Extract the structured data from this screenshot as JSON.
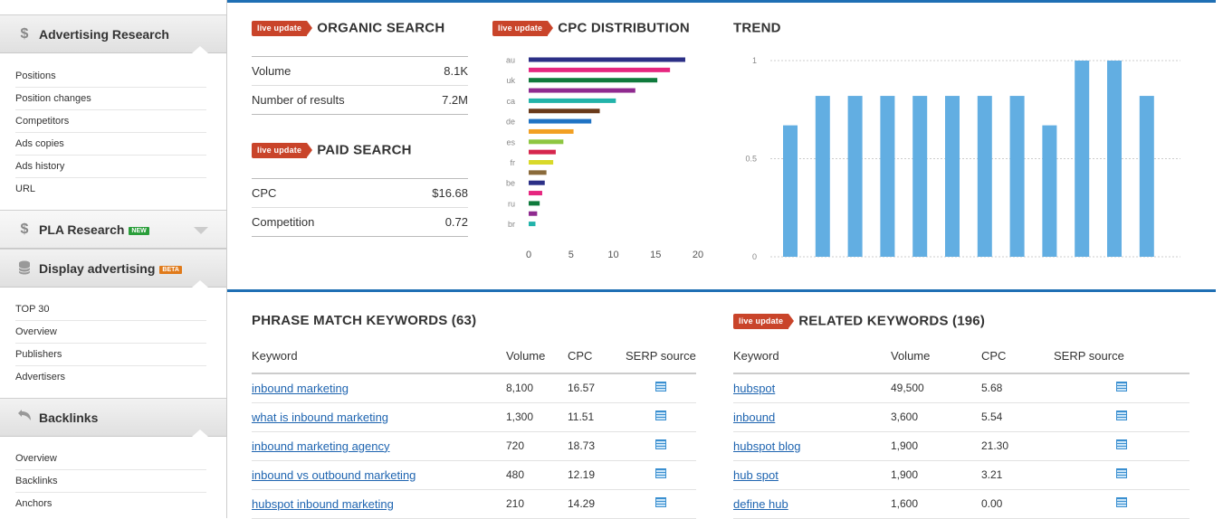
{
  "sidebar": {
    "sections": [
      {
        "title": "Advertising Research",
        "icon": "dollar-icon",
        "items": [
          "Positions",
          "Position changes",
          "Competitors",
          "Ads copies",
          "Ads history",
          "URL"
        ]
      },
      {
        "title": "PLA Research",
        "icon": "dollar-icon",
        "badge": "NEW",
        "collapsed": true
      },
      {
        "title": "Display advertising",
        "icon": "database-icon",
        "badge": "BETA",
        "items": [
          "TOP 30",
          "Overview",
          "Publishers",
          "Advertisers"
        ]
      },
      {
        "title": "Backlinks",
        "icon": "backlink-icon",
        "items": [
          "Overview",
          "Backlinks",
          "Anchors"
        ]
      }
    ]
  },
  "live_label": "live update",
  "organic": {
    "title": "ORGANIC SEARCH",
    "rows": [
      {
        "label": "Volume",
        "value": "8.1K"
      },
      {
        "label": "Number of results",
        "value": "7.2M"
      }
    ]
  },
  "paid": {
    "title": "PAID SEARCH",
    "rows": [
      {
        "label": "CPC",
        "value": "$16.68"
      },
      {
        "label": "Competition",
        "value": "0.72"
      }
    ]
  },
  "cpc_title": "CPC DISTRIBUTION",
  "trend_title": "TREND",
  "phrase": {
    "title": "PHRASE MATCH KEYWORDS (63)",
    "headers": [
      "Keyword",
      "Volume",
      "CPC",
      "SERP source"
    ],
    "rows": [
      [
        "inbound marketing",
        "8,100",
        "16.57"
      ],
      [
        "what is inbound marketing",
        "1,300",
        "11.51"
      ],
      [
        "inbound marketing agency",
        "720",
        "18.73"
      ],
      [
        "inbound vs outbound marketing",
        "480",
        "12.19"
      ],
      [
        "hubspot inbound marketing",
        "210",
        "14.29"
      ]
    ]
  },
  "related": {
    "title": "RELATED KEYWORDS (196)",
    "headers": [
      "Keyword",
      "Volume",
      "CPC",
      "SERP source"
    ],
    "rows": [
      [
        "hubspot",
        "49,500",
        "5.68"
      ],
      [
        "inbound",
        "3,600",
        "5.54"
      ],
      [
        "hubspot blog",
        "1,900",
        "21.30"
      ],
      [
        "hub spot",
        "1,900",
        "3.21"
      ],
      [
        "define hub",
        "1,600",
        "0.00"
      ]
    ]
  },
  "chart_data": [
    {
      "type": "bar",
      "orientation": "horizontal",
      "title": "CPC DISTRIBUTION",
      "categories": [
        "au",
        "",
        "uk",
        "",
        "ca",
        "",
        "de",
        "",
        "es",
        "",
        "fr",
        "",
        "be",
        "",
        "ru",
        "",
        "br"
      ],
      "values": [
        18.5,
        16.7,
        15.2,
        12.6,
        10.3,
        8.4,
        7.4,
        5.3,
        4.1,
        3.2,
        2.9,
        2.1,
        1.9,
        1.6,
        1.3,
        1.0,
        0.8
      ],
      "colors": [
        "#2b2f86",
        "#e6267f",
        "#0f7a3c",
        "#8f2a8f",
        "#22b3aa",
        "#6a3a1a",
        "#1f73c4",
        "#f2a023",
        "#8ec641",
        "#d6264d",
        "#d9d92a",
        "#8a6a3a",
        "#2b2f86",
        "#e6267f",
        "#0f7a3c",
        "#8f2a8f",
        "#22b3aa"
      ],
      "xticks": [
        "0",
        "5",
        "10",
        "15",
        "20"
      ],
      "xlim": [
        0,
        20
      ]
    },
    {
      "type": "bar",
      "title": "TREND",
      "values": [
        0.67,
        0.82,
        0.82,
        0.82,
        0.82,
        0.82,
        0.82,
        0.82,
        0.67,
        1.0,
        1.0,
        0.82
      ],
      "yticks": [
        "0",
        "0.5",
        "1"
      ],
      "ylim": [
        0,
        1
      ],
      "color": "#62aee2"
    }
  ]
}
